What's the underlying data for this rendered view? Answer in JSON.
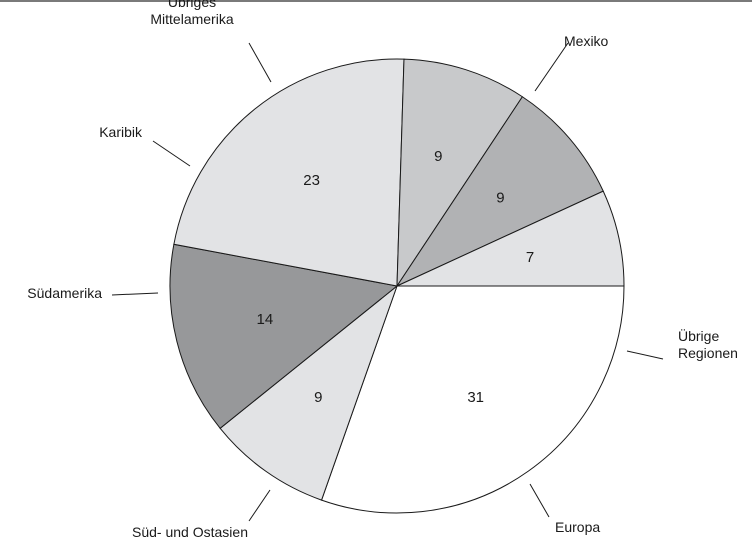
{
  "chart_data": {
    "type": "pie",
    "title": "",
    "slices": [
      {
        "label": "Mexiko",
        "label_lines": [
          "Mexiko"
        ],
        "value": 31,
        "value_label": "31",
        "color": "#ffffff"
      },
      {
        "label": "Übrige Regionen",
        "label_lines": [
          "Übrige",
          "Regionen"
        ],
        "value": 9,
        "value_label": "9",
        "color": "#e2e3e5"
      },
      {
        "label": "Europa",
        "label_lines": [
          "Europa"
        ],
        "value": 14,
        "value_label": "14",
        "color": "#97989a"
      },
      {
        "label": "Süd- und Ostasien",
        "label_lines": [
          "Süd- und Ostasien"
        ],
        "value": 23,
        "value_label": "23",
        "color": "#e2e3e5"
      },
      {
        "label": "Südamerika",
        "label_lines": [
          "Südamerika"
        ],
        "value": 9,
        "value_label": "9",
        "color": "#c8c9cb"
      },
      {
        "label": "Karibik",
        "label_lines": [
          "Karibik"
        ],
        "value": 9,
        "value_label": "9",
        "color": "#b1b2b4"
      },
      {
        "label": "Übriges Mittelamerika",
        "label_lines": [
          "Übriges",
          "Mittelamerika"
        ],
        "value": 7,
        "value_label": "7",
        "color": "#e2e3e5"
      }
    ],
    "start_direction": "east",
    "direction": "clockwise",
    "legend": "none",
    "border_color": "#1a1a1a"
  }
}
